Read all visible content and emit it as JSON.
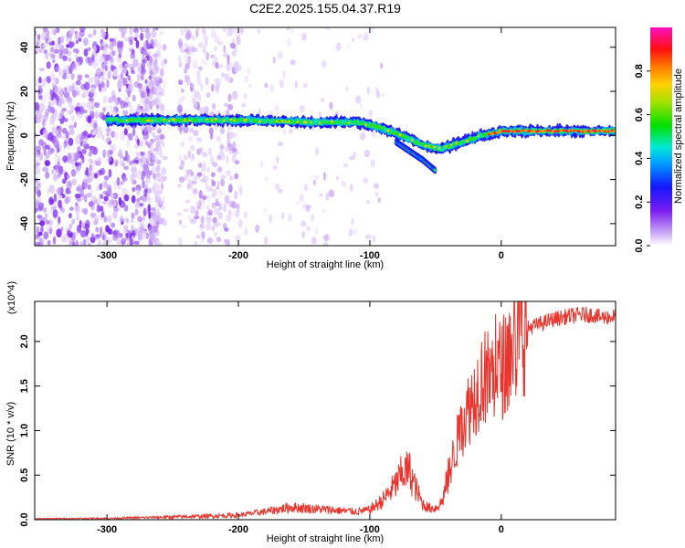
{
  "title": "C2E2.2025.155.04.37.R19",
  "chart_data": [
    {
      "type": "heatmap",
      "xlabel": "Height of straight line (km)",
      "ylabel": "Frequency (Hz)",
      "xlim": [
        -355,
        87
      ],
      "ylim": [
        -50,
        49
      ],
      "xticks": [
        -300,
        -200,
        -100,
        0
      ],
      "yticks": [
        -40,
        -20,
        0,
        20,
        40
      ],
      "colorbar": {
        "label": "Normalized spectral amplitude",
        "range": [
          0,
          1
        ],
        "ticks": [
          "0.0",
          "0.2",
          "0.4",
          "0.6",
          "0.8"
        ],
        "colormap": "rainbow (white-violet-blue-cyan-green-yellow-orange-red-magenta)"
      },
      "ridge": {
        "x": [
          -300,
          -250,
          -200,
          -150,
          -110,
          -95,
          -80,
          -65,
          -55,
          -45,
          -35,
          -25,
          -15,
          -5,
          0,
          20,
          40,
          60,
          87
        ],
        "frequency": [
          7,
          7,
          7,
          6,
          6,
          4,
          1,
          -3,
          -5,
          -6,
          -4,
          -2,
          0,
          1,
          2,
          2,
          2,
          2,
          2
        ]
      },
      "branch": {
        "x": [
          -80,
          -70,
          -60,
          -50
        ],
        "frequency": [
          -3,
          -7,
          -11,
          -16
        ]
      }
    },
    {
      "type": "line",
      "xlabel": "Height of straight line (km)",
      "ylabel": "SNR (10 * v/v)",
      "multiplier": "(x10^4)",
      "xlim": [
        -355,
        87
      ],
      "ylim": [
        0,
        24500
      ],
      "xticks": [
        -300,
        -200,
        -100,
        0
      ],
      "yticks": [
        "0.0",
        "0.5",
        "1.0",
        "1.5",
        "2.0"
      ],
      "line_color": "#e8352d",
      "envelope": {
        "x": [
          -355,
          -300,
          -250,
          -200,
          -180,
          -160,
          -140,
          -120,
          -110,
          -100,
          -90,
          -80,
          -75,
          -70,
          -65,
          -60,
          -55,
          -50,
          -45,
          -40,
          -35,
          -30,
          -25,
          -20,
          -15,
          -10,
          -5,
          0,
          5,
          10,
          15,
          20,
          30,
          40,
          50,
          60,
          70,
          75,
          87
        ],
        "y": [
          100,
          150,
          300,
          500,
          900,
          1400,
          1200,
          1000,
          900,
          1100,
          2200,
          4000,
          5300,
          5500,
          3500,
          1800,
          1300,
          1300,
          2000,
          5000,
          8000,
          10500,
          12500,
          14000,
          16000,
          16000,
          16500,
          17000,
          18000,
          19500,
          21000,
          21500,
          22000,
          22500,
          22800,
          23000,
          23000,
          22700,
          22800
        ]
      }
    }
  ]
}
